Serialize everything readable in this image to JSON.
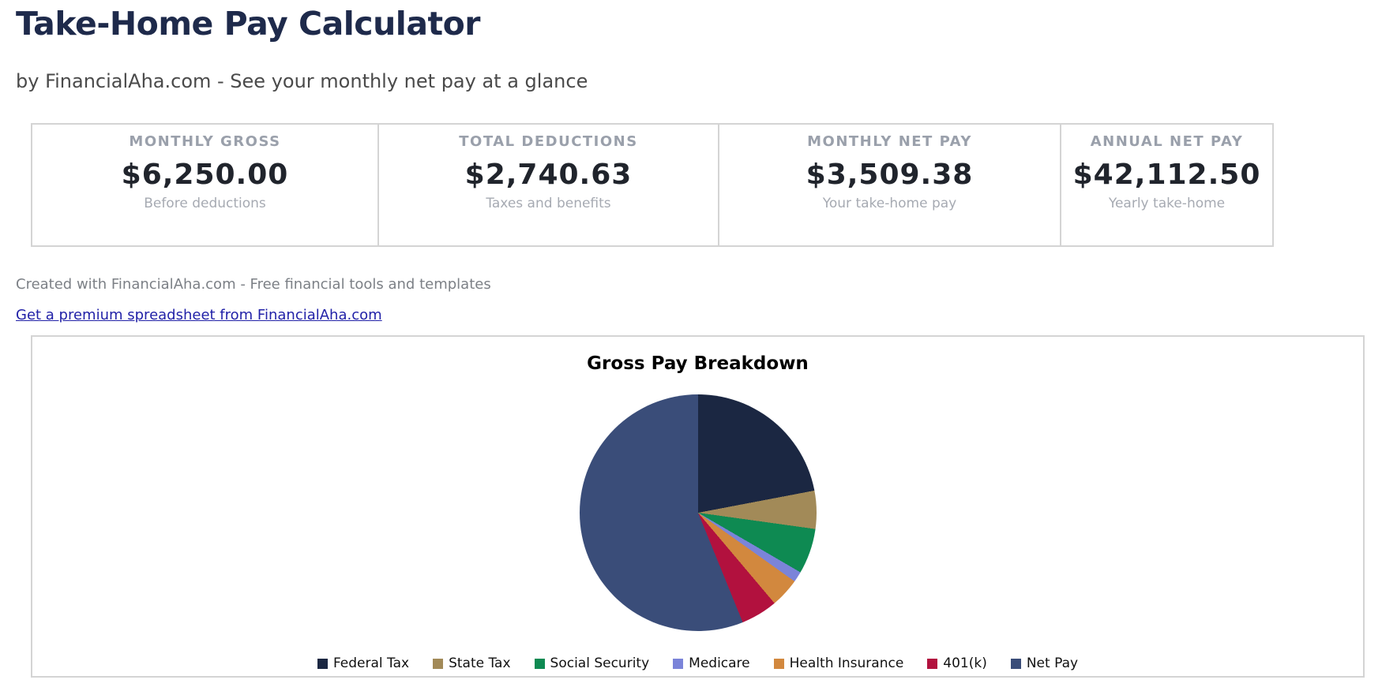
{
  "page": {
    "title": "Take-Home Pay Calculator",
    "subtitle": "by FinancialAha.com - See your monthly net pay at a glance",
    "credit": "Created with FinancialAha.com - Free financial tools and templates",
    "premium_link_label": "Get a premium spreadsheet from FinancialAha.com"
  },
  "theme": {
    "heading_color": "#1e2a4b",
    "link_color": "#2222a8",
    "panel_border_color": "#d4d4d4",
    "muted_label_color": "#9aa0ab"
  },
  "stats": [
    {
      "label": "MONTHLY GROSS",
      "value": "$6,250.00",
      "sub": "Before deductions"
    },
    {
      "label": "TOTAL DEDUCTIONS",
      "value": "$2,740.63",
      "sub": "Taxes and benefits"
    },
    {
      "label": "MONTHLY NET PAY",
      "value": "$3,509.38",
      "sub": "Your take-home pay"
    },
    {
      "label": "ANNUAL NET PAY",
      "value": "$42,112.50",
      "sub": "Yearly take-home"
    }
  ],
  "chart_data": {
    "type": "pie",
    "title": "Gross Pay Breakdown",
    "categories": [
      "Federal Tax",
      "State Tax",
      "Social Security",
      "Medicare",
      "Health Insurance",
      "401(k)",
      "Net Pay"
    ],
    "values": [
      1375.0,
      325.0,
      387.5,
      90.63,
      250.0,
      312.5,
      3509.38
    ],
    "percents": [
      22.0,
      5.2,
      6.2,
      1.45,
      4.0,
      5.0,
      56.15
    ],
    "total": 6250.0,
    "colors": [
      "#1b2742",
      "#a28a58",
      "#0e8a52",
      "#7b84d9",
      "#d2883e",
      "#b2113e",
      "#3a4d79"
    ],
    "start_angle_deg": 0,
    "direction": "clockwise",
    "legend_position": "bottom"
  }
}
